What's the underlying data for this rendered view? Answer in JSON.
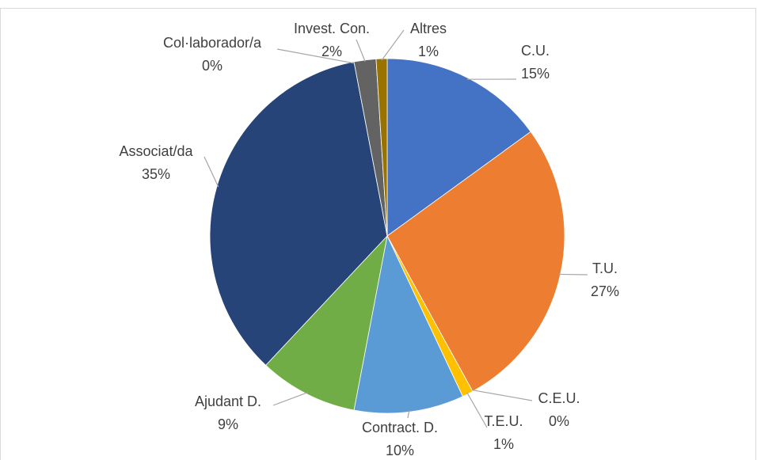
{
  "chart_data": {
    "type": "pie",
    "categories": [
      "C.U.",
      "T.U.",
      "C.E.U.",
      "T.E.U.",
      "Contract. D.",
      "Ajudant D.",
      "Associat/da",
      "Col·laborador/a",
      "Invest. Con.",
      "Altres"
    ],
    "values": [
      15,
      27,
      0,
      1,
      10,
      9,
      35,
      0,
      2,
      1
    ],
    "value_labels": [
      "15%",
      "27%",
      "0%",
      "1%",
      "10%",
      "9%",
      "35%",
      "0%",
      "2%",
      "1%"
    ],
    "colors": [
      "#4472c4",
      "#ed7d31",
      "#a5a5a5",
      "#ffc000",
      "#5b9bd5",
      "#70ad47",
      "#264478",
      "#9e480e",
      "#636363",
      "#997300"
    ]
  }
}
